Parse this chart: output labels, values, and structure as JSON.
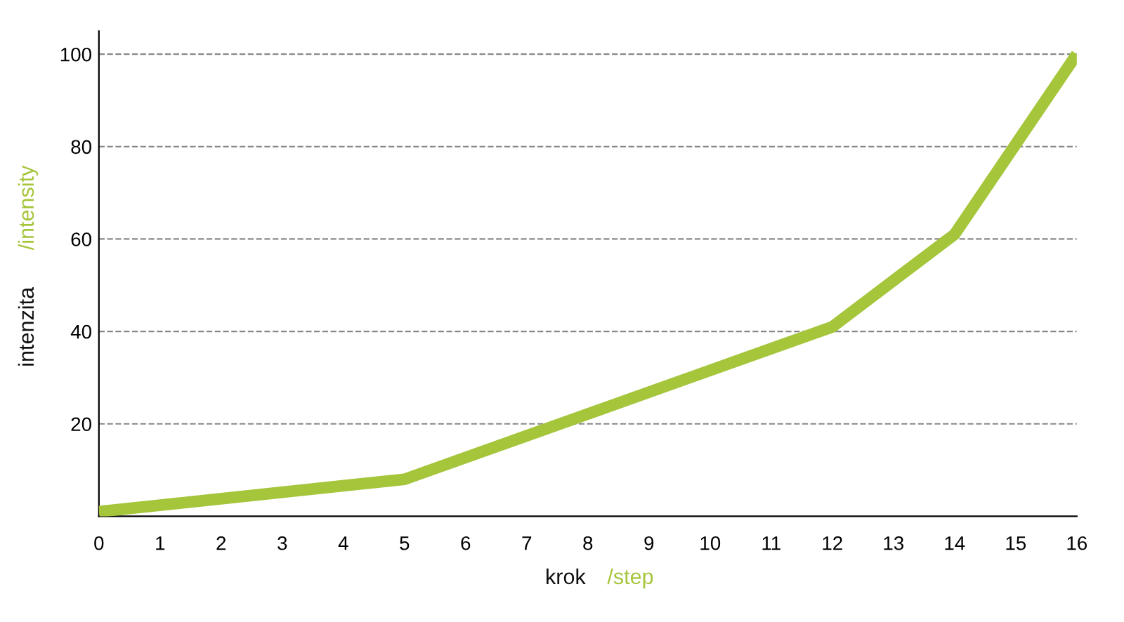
{
  "chart_data": {
    "type": "line",
    "xlabel": "krok /step",
    "ylabel": "intenzita /intensity",
    "x": [
      0,
      5,
      12,
      14,
      16
    ],
    "series": [
      {
        "color": "#a5c53a",
        "values": [
          1,
          8,
          41,
          61,
          100
        ]
      }
    ],
    "xlim": [
      0,
      16
    ],
    "xticks": [
      0,
      1,
      2,
      3,
      4,
      5,
      6,
      7,
      8,
      9,
      10,
      11,
      12,
      13,
      14,
      15,
      16
    ],
    "ylim": [
      0,
      105
    ],
    "yticks": [
      20,
      40,
      60,
      80,
      100
    ],
    "grid": "y",
    "marker": "none",
    "line_style": "solid",
    "legend": false
  }
}
